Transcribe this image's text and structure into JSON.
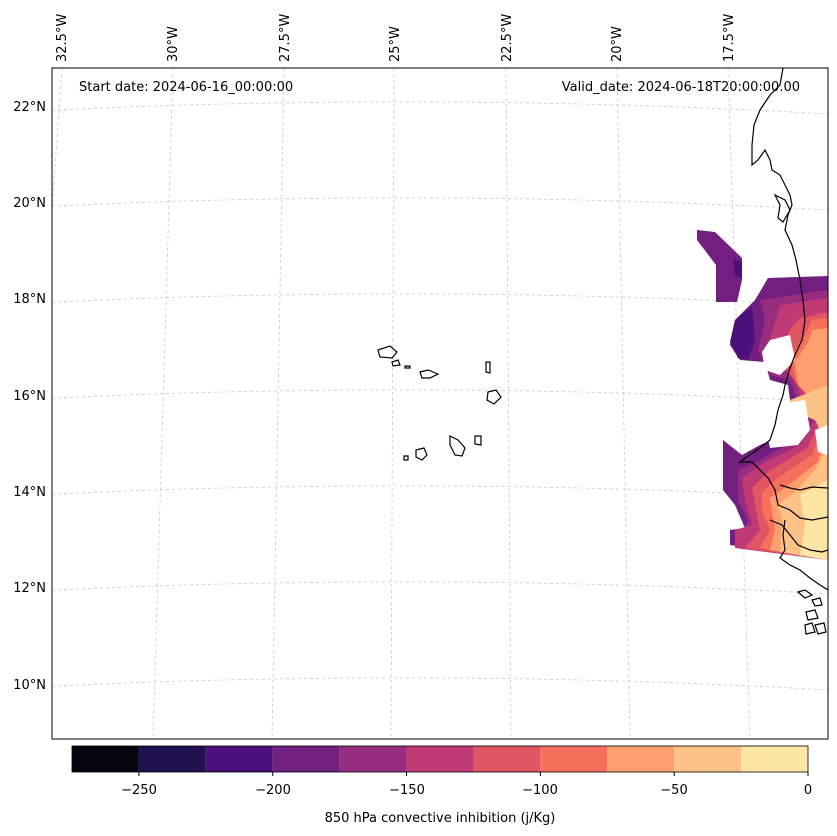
{
  "map": {
    "start_date": "Start date: 2024-06-16_00:00:00",
    "valid_date": "Valid_date: 2024-06-18T20:00:00.00",
    "lon_labels": [
      "32.5°W",
      "30°W",
      "27.5°W",
      "25°W",
      "22.5°W",
      "20°W",
      "17.5°W"
    ],
    "lat_labels": [
      "22°N",
      "20°N",
      "18°N",
      "16°N",
      "14°N",
      "12°N",
      "10°N"
    ]
  },
  "colorbar": {
    "title": "850 hPa convective inhibition (j/Kg)",
    "tick_labels": [
      "−250",
      "−200",
      "−150",
      "−100",
      "−50",
      "0"
    ],
    "colors": [
      "#05040f",
      "#221150",
      "#4c107a",
      "#721f81",
      "#982d80",
      "#c03a76",
      "#e25563",
      "#f6705b",
      "#fe9f6d",
      "#fec287",
      "#fde6a5"
    ]
  },
  "legend": {
    "levels": [
      -275,
      -250,
      -225,
      -200,
      -175,
      -150,
      -125,
      -100,
      -75,
      -50,
      -25,
      0
    ]
  }
}
